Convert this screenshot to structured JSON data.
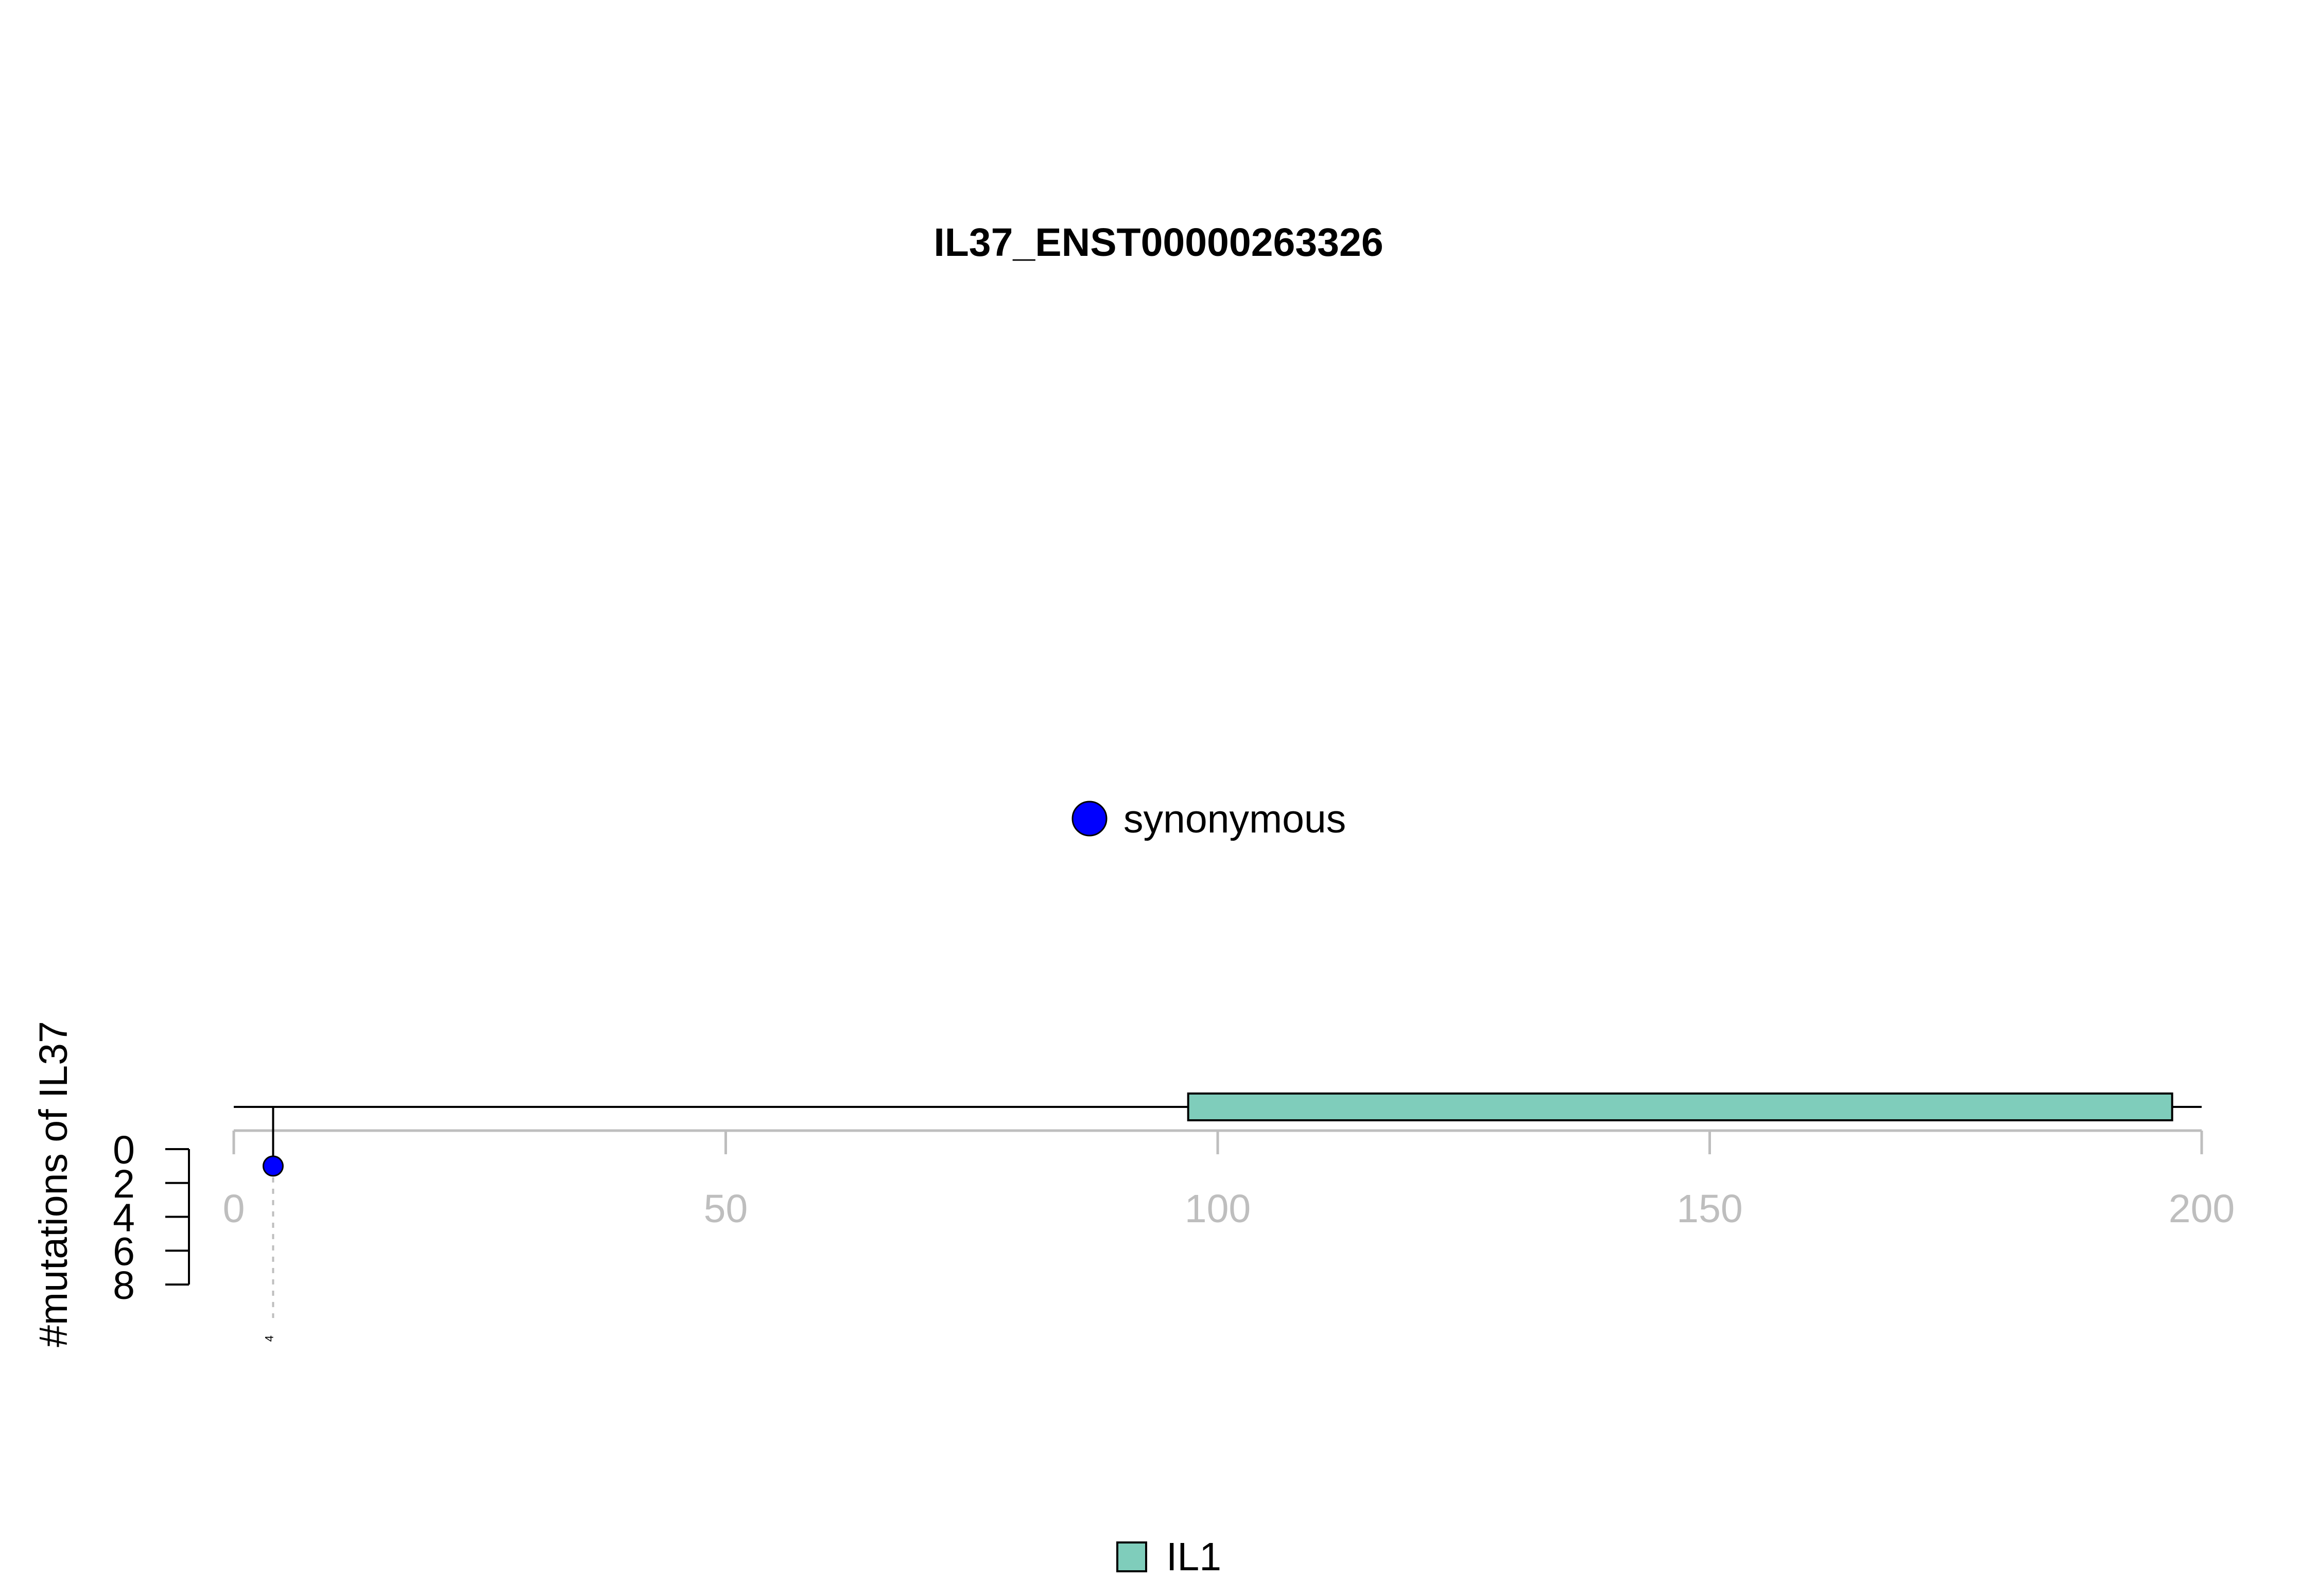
{
  "chart_data": {
    "type": "lollipop",
    "title": "IL37_ENST00000263326",
    "ylabel": "#mutations of IL37",
    "xlim": [
      0,
      200
    ],
    "x_ticks": [
      0,
      50,
      100,
      150,
      200
    ],
    "y_ticks": [
      0,
      2,
      4,
      6,
      8
    ],
    "ylim": [
      0,
      8
    ],
    "y_axis_direction": "down",
    "protein_length": 200,
    "mutations": [
      {
        "position": 4,
        "count": 1,
        "type": "synonymous",
        "label": "4"
      }
    ],
    "mutation_legend": [
      {
        "label": "synonymous",
        "color": "#0000FF"
      }
    ],
    "domains": [
      {
        "name": "IL1",
        "start": 97,
        "end": 197,
        "color": "#7FCDBB"
      }
    ],
    "domain_legend": [
      {
        "label": "IL1",
        "color": "#7FCDBB"
      }
    ],
    "colors": {
      "axis_gray": "#BEBEBE",
      "backbone": "#000000",
      "guide_line": "#BEBEBE"
    }
  }
}
